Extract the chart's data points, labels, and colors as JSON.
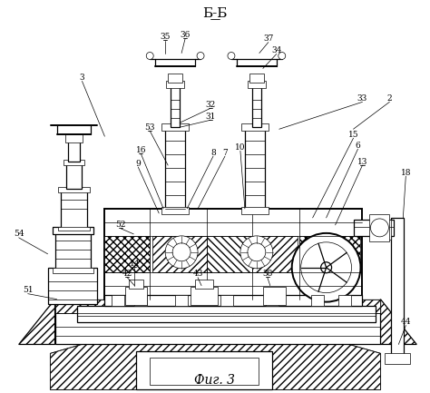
{
  "title": "Б-Б",
  "caption": "Фиг. 3",
  "bg_color": "#ffffff",
  "line_color": "#000000",
  "figsize": [
    4.74,
    4.33
  ],
  "dpi": 100,
  "lw_thin": 0.5,
  "lw_med": 0.9,
  "lw_thick": 1.4
}
